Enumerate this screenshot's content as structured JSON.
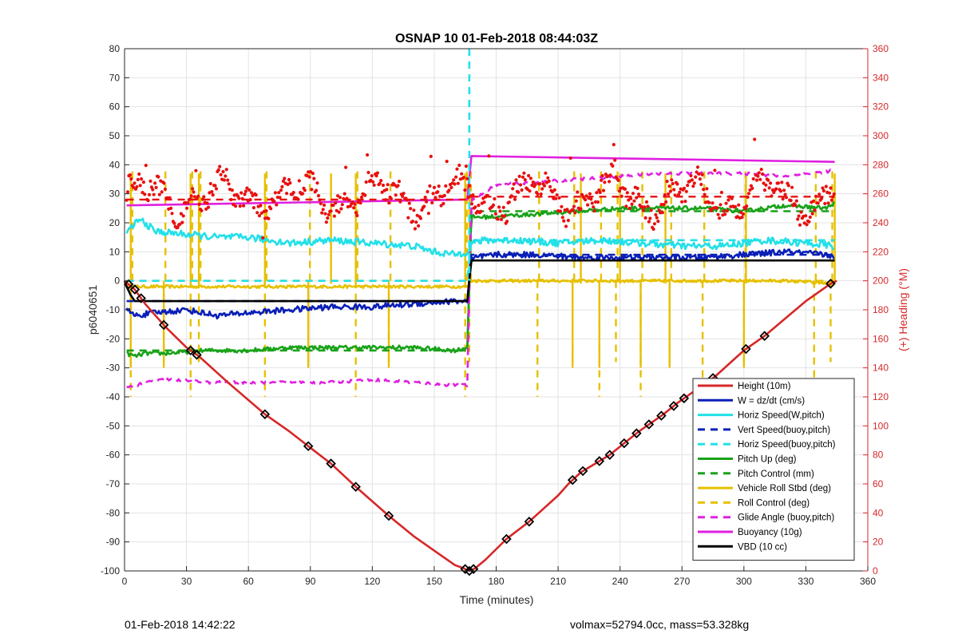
{
  "footer": {
    "left_text": "01-Feb-2018 14:42:22",
    "right_text": "volmax=52794.0cc, mass=53.328kg"
  },
  "chart_data": {
    "type": "line",
    "title": "OSNAP 10 01-Feb-2018 08:44:03Z",
    "xlabel": "Time (minutes)",
    "ylabel": "p6040651",
    "ylabel_right": "(+) Heading (°M)",
    "xlim": [
      0,
      360
    ],
    "ylim": [
      -100,
      80
    ],
    "ylim_right": [
      0,
      360
    ],
    "xticks": [
      0,
      30,
      60,
      90,
      120,
      150,
      180,
      210,
      240,
      270,
      300,
      330,
      360
    ],
    "yticks": [
      -100,
      -90,
      -80,
      -70,
      -60,
      -50,
      -40,
      -30,
      -20,
      -10,
      0,
      10,
      20,
      30,
      40,
      50,
      60,
      70,
      80
    ],
    "yticks_right": [
      0,
      20,
      40,
      60,
      80,
      100,
      120,
      140,
      160,
      180,
      200,
      220,
      240,
      260,
      280,
      300,
      320,
      340,
      360
    ],
    "grid": true,
    "legend_position": "bottom-right",
    "colors": {
      "height": "#d62728",
      "w": "#0a1fb8",
      "horiz": "#22e0e8",
      "pitch": "#19a219",
      "roll": "#e6c000",
      "glide": "#e020e0",
      "buoy": "#e020e0",
      "vbd": "#000000",
      "heading": "#e81010"
    },
    "series": [
      {
        "name": "Height (10m)",
        "style": "solid",
        "color": "#d62728",
        "x": [
          0,
          5,
          10,
          20,
          30,
          36,
          50,
          68,
          80,
          89,
          100,
          112,
          128,
          140,
          150,
          160,
          164,
          167,
          170,
          175,
          185,
          196,
          210,
          215,
          221,
          228,
          235,
          242,
          249,
          255,
          261,
          268,
          272,
          286,
          300,
          310,
          320,
          330,
          338,
          342,
          345
        ],
        "y": [
          0,
          -3,
          -8,
          -16,
          -23,
          -26,
          -35,
          -46,
          -52,
          -57,
          -63,
          -71,
          -81,
          -88,
          -93,
          -98,
          -99,
          -100,
          -99,
          -96,
          -89,
          -83,
          -74,
          -70,
          -66,
          -63,
          -60,
          -56,
          -52,
          -49,
          -46,
          -42,
          -40,
          -33,
          -24,
          -19,
          -13,
          -7,
          -3,
          -1,
          0
        ]
      },
      {
        "name": "W = dz/dt (cm/s)",
        "style": "solid",
        "color": "#0a1fb8",
        "x": [
          1,
          5,
          15,
          30,
          45,
          60,
          80,
          100,
          120,
          140,
          160,
          166,
          168,
          170,
          180,
          200,
          220,
          240,
          260,
          280,
          300,
          320,
          340,
          344
        ],
        "y": [
          -10,
          -12,
          -11,
          -10,
          -12,
          -11,
          -10,
          -9,
          -9,
          -8,
          -7,
          -7,
          7,
          8,
          9,
          9,
          8,
          8,
          8,
          8,
          9,
          10,
          9,
          8
        ]
      },
      {
        "name": "Horiz Speed(W,pitch)",
        "style": "solid",
        "color": "#22e0e8",
        "x": [
          1,
          5,
          8,
          15,
          30,
          45,
          60,
          80,
          100,
          120,
          140,
          150,
          160,
          166,
          168,
          175,
          190,
          210,
          230,
          250,
          270,
          290,
          310,
          330,
          344
        ],
        "y": [
          16,
          20,
          21,
          17,
          16,
          15,
          15,
          13,
          14,
          13,
          12,
          10,
          9,
          10,
          13,
          14,
          14,
          13,
          14,
          13,
          12,
          12,
          14,
          13,
          12
        ]
      },
      {
        "name": "Vert Speed(buoy,pitch)",
        "style": "dash",
        "color": "#0a1fb8",
        "x": [
          1,
          166,
          168,
          344
        ],
        "y": [
          -7,
          -7,
          9,
          9
        ]
      },
      {
        "name": "Horiz Speed(buoy,pitch)",
        "style": "dash",
        "color": "#22e0e8",
        "x": [
          1,
          166,
          168,
          344
        ],
        "y": [
          0,
          0,
          14,
          14
        ]
      },
      {
        "name": "Pitch Up (deg)",
        "style": "solid",
        "color": "#19a219",
        "x": [
          1,
          5,
          10,
          20,
          40,
          60,
          80,
          100,
          120,
          140,
          160,
          166,
          168,
          175,
          200,
          220,
          240,
          260,
          280,
          300,
          320,
          340,
          344
        ],
        "y": [
          -25,
          -26,
          -25,
          -25,
          -24,
          -24,
          -23,
          -23,
          -23,
          -23,
          -24,
          -23,
          22,
          22,
          23,
          24,
          25,
          25,
          25,
          24,
          26,
          25,
          27
        ]
      },
      {
        "name": "Pitch Control (mm)",
        "style": "dash",
        "color": "#19a219",
        "x": [
          1,
          166,
          168,
          344
        ],
        "y": [
          -24,
          -24,
          24,
          24
        ]
      },
      {
        "name": "Vehicle Roll Stbd (deg)",
        "style": "solid",
        "color": "#e6c000",
        "x": [
          1,
          30,
          60,
          90,
          120,
          150,
          166,
          168,
          200,
          240,
          280,
          320,
          344
        ],
        "y": [
          -2,
          -2,
          -2,
          -2,
          -2,
          -2,
          -2,
          0,
          0,
          0,
          0,
          0,
          -1
        ]
      },
      {
        "name": "Roll Control (deg)",
        "style": "dash",
        "color": "#e6c000",
        "x": [
          1,
          166,
          168,
          344
        ],
        "y": [
          0,
          0,
          0,
          0
        ]
      },
      {
        "name": "Glide Angle (buoy,pitch)",
        "style": "dash",
        "color": "#e020e0",
        "x": [
          1,
          10,
          20,
          40,
          60,
          80,
          100,
          120,
          140,
          160,
          166,
          168,
          180,
          200,
          220,
          240,
          260,
          280,
          300,
          320,
          344
        ],
        "y": [
          -37,
          -35,
          -34,
          -35,
          -35,
          -35,
          -35,
          -34,
          -35,
          -36,
          -36,
          28,
          33,
          34,
          35,
          36,
          37,
          37,
          37,
          36,
          38
        ]
      },
      {
        "name": "Buoyancy (10g)",
        "style": "solid",
        "color": "#e020e0",
        "x": [
          1,
          166,
          168,
          344
        ],
        "y": [
          26,
          28,
          43,
          41
        ]
      },
      {
        "name": "VBD (10 cc)",
        "style": "solid",
        "color": "#000000",
        "x": [
          0,
          1,
          3,
          5,
          166,
          168,
          344
        ],
        "y": [
          0,
          -2,
          -5,
          -7,
          -7,
          7,
          7
        ]
      }
    ],
    "heading_series": {
      "color": "#e81010",
      "x_start": 1,
      "x_end": 344,
      "dashed_mean_left": 256,
      "dashed_mean_right": 258
    }
  }
}
